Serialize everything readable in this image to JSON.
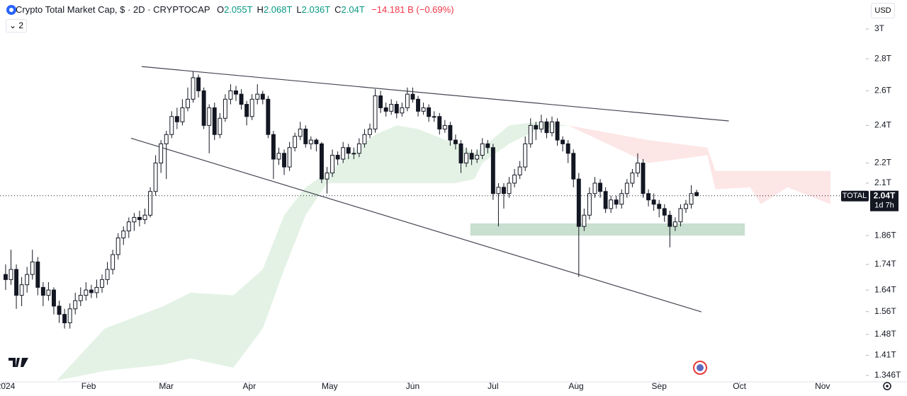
{
  "chart_data": {
    "type": "candlestick",
    "title": "Crypto Total Market Cap, $ · 2D · CRYPTOCAP",
    "ohlc_keys": [
      "O",
      "H",
      "L",
      "C"
    ],
    "ohlc_values": [
      "2.055T",
      "2.068T",
      "2.036T",
      "2.04T"
    ],
    "change": "−14.181 B (−0.69%)",
    "legend_toggle": "2",
    "currency": "USD",
    "log_scale": true,
    "xlim": [
      -2.1,
      321.2
    ],
    "ylim": [
      1.326,
      3.208
    ],
    "xticks": [
      {
        "value": 0,
        "label": "2024"
      },
      {
        "value": 31,
        "label": "Feb"
      },
      {
        "value": 60,
        "label": "Mar"
      },
      {
        "value": 91,
        "label": "Apr"
      },
      {
        "value": 121,
        "label": "May"
      },
      {
        "value": 152,
        "label": "Jun"
      },
      {
        "value": 182,
        "label": "Jul"
      },
      {
        "value": 213,
        "label": "Aug"
      },
      {
        "value": 244,
        "label": "Sep"
      },
      {
        "value": 274,
        "label": "Oct"
      },
      {
        "value": 305,
        "label": "Nov"
      }
    ],
    "yticks": [
      {
        "value": 3,
        "label": "3T"
      },
      {
        "value": 2.8,
        "label": "2.8T"
      },
      {
        "value": 2.6,
        "label": "2.6T"
      },
      {
        "value": 2.4,
        "label": "2.4T"
      },
      {
        "value": 2.2,
        "label": "2.2T"
      },
      {
        "value": 2.1,
        "label": "2.1T"
      },
      {
        "value": 1.86,
        "label": "1.86T"
      },
      {
        "value": 1.74,
        "label": "1.74T"
      },
      {
        "value": 1.64,
        "label": "1.64T"
      },
      {
        "value": 1.56,
        "label": "1.56T"
      },
      {
        "value": 1.48,
        "label": "1.48T"
      },
      {
        "value": 1.41,
        "label": "1.41T"
      },
      {
        "value": 1.346,
        "label": "1.346T"
      }
    ],
    "up_color": "#ffffff",
    "down_color": "#131722",
    "x": [
      0,
      2,
      4,
      6,
      8,
      10,
      12,
      14,
      16,
      18,
      20,
      22,
      24,
      26,
      28,
      30,
      32,
      34,
      36,
      38,
      40,
      42,
      44,
      46,
      48,
      50,
      52,
      54,
      56,
      58,
      60,
      62,
      64,
      66,
      68,
      70,
      72,
      74,
      76,
      78,
      80,
      82,
      84,
      86,
      88,
      90,
      92,
      94,
      96,
      98,
      100,
      102,
      104,
      106,
      108,
      110,
      112,
      114,
      116,
      118,
      120,
      122,
      124,
      126,
      128,
      130,
      132,
      134,
      136,
      138,
      140,
      142,
      144,
      146,
      148,
      150,
      152,
      154,
      156,
      158,
      160,
      162,
      164,
      166,
      168,
      170,
      172,
      174,
      176,
      178,
      180,
      182,
      184,
      186,
      188,
      190,
      192,
      194,
      196,
      198,
      200,
      202,
      204,
      206,
      208,
      210,
      212,
      214,
      216,
      218,
      220,
      222,
      224,
      226,
      228,
      230,
      232,
      234,
      236,
      238,
      240,
      242,
      244,
      246,
      248,
      250,
      252,
      254,
      256,
      258
    ],
    "candles": [
      [
        1.7,
        1.74,
        1.64,
        1.68
      ],
      [
        1.68,
        1.8,
        1.66,
        1.72
      ],
      [
        1.72,
        1.74,
        1.57,
        1.62
      ],
      [
        1.62,
        1.69,
        1.58,
        1.66
      ],
      [
        1.66,
        1.73,
        1.63,
        1.7
      ],
      [
        1.7,
        1.8,
        1.68,
        1.75
      ],
      [
        1.75,
        1.77,
        1.62,
        1.65
      ],
      [
        1.65,
        1.67,
        1.58,
        1.62
      ],
      [
        1.62,
        1.67,
        1.6,
        1.64
      ],
      [
        1.64,
        1.65,
        1.55,
        1.58
      ],
      [
        1.58,
        1.6,
        1.52,
        1.55
      ],
      [
        1.55,
        1.57,
        1.5,
        1.52
      ],
      [
        1.52,
        1.59,
        1.5,
        1.57
      ],
      [
        1.57,
        1.63,
        1.55,
        1.6
      ],
      [
        1.6,
        1.65,
        1.58,
        1.62
      ],
      [
        1.62,
        1.67,
        1.6,
        1.64
      ],
      [
        1.64,
        1.66,
        1.61,
        1.63
      ],
      [
        1.63,
        1.68,
        1.61,
        1.65
      ],
      [
        1.65,
        1.7,
        1.63,
        1.68
      ],
      [
        1.68,
        1.75,
        1.66,
        1.72
      ],
      [
        1.72,
        1.8,
        1.7,
        1.78
      ],
      [
        1.78,
        1.87,
        1.76,
        1.85
      ],
      [
        1.85,
        1.9,
        1.82,
        1.88
      ],
      [
        1.88,
        1.94,
        1.85,
        1.92
      ],
      [
        1.92,
        1.96,
        1.88,
        1.94
      ],
      [
        1.94,
        1.97,
        1.9,
        1.93
      ],
      [
        1.93,
        1.98,
        1.91,
        1.95
      ],
      [
        1.95,
        2.08,
        1.94,
        2.06
      ],
      [
        2.06,
        2.24,
        2.04,
        2.2
      ],
      [
        2.2,
        2.32,
        2.15,
        2.3
      ],
      [
        2.3,
        2.37,
        2.12,
        2.35
      ],
      [
        2.35,
        2.48,
        2.33,
        2.45
      ],
      [
        2.45,
        2.5,
        2.38,
        2.42
      ],
      [
        2.42,
        2.55,
        2.4,
        2.5
      ],
      [
        2.5,
        2.62,
        2.48,
        2.55
      ],
      [
        2.55,
        2.72,
        2.53,
        2.68
      ],
      [
        2.68,
        2.7,
        2.56,
        2.6
      ],
      [
        2.6,
        2.62,
        2.38,
        2.4
      ],
      [
        2.4,
        2.52,
        2.25,
        2.5
      ],
      [
        2.5,
        2.53,
        2.32,
        2.35
      ],
      [
        2.35,
        2.47,
        2.33,
        2.44
      ],
      [
        2.44,
        2.58,
        2.42,
        2.55
      ],
      [
        2.55,
        2.64,
        2.52,
        2.6
      ],
      [
        2.6,
        2.63,
        2.54,
        2.58
      ],
      [
        2.58,
        2.61,
        2.49,
        2.52
      ],
      [
        2.52,
        2.54,
        2.4,
        2.45
      ],
      [
        2.45,
        2.58,
        2.43,
        2.55
      ],
      [
        2.55,
        2.64,
        2.52,
        2.58
      ],
      [
        2.58,
        2.6,
        2.52,
        2.55
      ],
      [
        2.55,
        2.57,
        2.33,
        2.35
      ],
      [
        2.35,
        2.37,
        2.12,
        2.22
      ],
      [
        2.22,
        2.28,
        2.19,
        2.25
      ],
      [
        2.25,
        2.27,
        2.14,
        2.18
      ],
      [
        2.18,
        2.31,
        2.16,
        2.28
      ],
      [
        2.28,
        2.36,
        2.26,
        2.34
      ],
      [
        2.34,
        2.42,
        2.32,
        2.38
      ],
      [
        2.38,
        2.4,
        2.28,
        2.3
      ],
      [
        2.3,
        2.34,
        2.27,
        2.32
      ],
      [
        2.32,
        2.33,
        2.26,
        2.3
      ],
      [
        2.3,
        2.31,
        2.1,
        2.12
      ],
      [
        2.12,
        2.18,
        2.05,
        2.15
      ],
      [
        2.15,
        2.27,
        2.13,
        2.24
      ],
      [
        2.24,
        2.26,
        2.19,
        2.22
      ],
      [
        2.22,
        2.31,
        2.2,
        2.28
      ],
      [
        2.28,
        2.3,
        2.22,
        2.25
      ],
      [
        2.25,
        2.28,
        2.22,
        2.25
      ],
      [
        2.25,
        2.33,
        2.23,
        2.3
      ],
      [
        2.3,
        2.38,
        2.28,
        2.35
      ],
      [
        2.35,
        2.41,
        2.33,
        2.38
      ],
      [
        2.38,
        2.61,
        2.36,
        2.57
      ],
      [
        2.57,
        2.6,
        2.47,
        2.5
      ],
      [
        2.5,
        2.53,
        2.45,
        2.48
      ],
      [
        2.48,
        2.55,
        2.46,
        2.52
      ],
      [
        2.52,
        2.54,
        2.44,
        2.47
      ],
      [
        2.47,
        2.53,
        2.45,
        2.5
      ],
      [
        2.5,
        2.62,
        2.48,
        2.58
      ],
      [
        2.58,
        2.62,
        2.53,
        2.55
      ],
      [
        2.55,
        2.57,
        2.45,
        2.48
      ],
      [
        2.48,
        2.53,
        2.46,
        2.5
      ],
      [
        2.5,
        2.52,
        2.42,
        2.45
      ],
      [
        2.45,
        2.48,
        2.42,
        2.45
      ],
      [
        2.45,
        2.47,
        2.35,
        2.38
      ],
      [
        2.38,
        2.43,
        2.36,
        2.4
      ],
      [
        2.4,
        2.42,
        2.29,
        2.32
      ],
      [
        2.32,
        2.35,
        2.27,
        2.3
      ],
      [
        2.3,
        2.32,
        2.15,
        2.2
      ],
      [
        2.2,
        2.28,
        2.18,
        2.25
      ],
      [
        2.25,
        2.27,
        2.19,
        2.22
      ],
      [
        2.22,
        2.27,
        2.2,
        2.24
      ],
      [
        2.24,
        2.33,
        2.22,
        2.3
      ],
      [
        2.3,
        2.32,
        2.25,
        2.28
      ],
      [
        2.28,
        2.3,
        2.02,
        2.05
      ],
      [
        2.05,
        2.1,
        1.9,
        2.08
      ],
      [
        2.08,
        2.1,
        1.98,
        2.05
      ],
      [
        2.05,
        2.13,
        2.03,
        2.1
      ],
      [
        2.1,
        2.17,
        2.08,
        2.14
      ],
      [
        2.14,
        2.21,
        2.12,
        2.18
      ],
      [
        2.18,
        2.34,
        2.16,
        2.3
      ],
      [
        2.3,
        2.44,
        2.28,
        2.4
      ],
      [
        2.4,
        2.42,
        2.32,
        2.38
      ],
      [
        2.38,
        2.46,
        2.36,
        2.42
      ],
      [
        2.42,
        2.44,
        2.33,
        2.36
      ],
      [
        2.36,
        2.45,
        2.34,
        2.42
      ],
      [
        2.42,
        2.44,
        2.29,
        2.32
      ],
      [
        2.32,
        2.34,
        2.26,
        2.3
      ],
      [
        2.3,
        2.32,
        2.2,
        2.25
      ],
      [
        2.25,
        2.27,
        2.08,
        2.12
      ],
      [
        2.12,
        2.15,
        1.69,
        1.9
      ],
      [
        1.9,
        1.98,
        1.88,
        1.95
      ],
      [
        1.95,
        2.08,
        1.93,
        2.05
      ],
      [
        2.05,
        2.13,
        2.03,
        2.1
      ],
      [
        2.1,
        2.12,
        2.03,
        2.06
      ],
      [
        2.06,
        2.08,
        1.96,
        1.98
      ],
      [
        1.98,
        2.04,
        1.96,
        2.02
      ],
      [
        2.02,
        2.04,
        1.98,
        2.0
      ],
      [
        2.0,
        2.07,
        1.98,
        2.05
      ],
      [
        2.05,
        2.12,
        2.03,
        2.1
      ],
      [
        2.1,
        2.17,
        2.08,
        2.15
      ],
      [
        2.15,
        2.25,
        2.13,
        2.2
      ],
      [
        2.2,
        2.22,
        2.03,
        2.05
      ],
      [
        2.05,
        2.07,
        1.99,
        2.02
      ],
      [
        2.02,
        2.05,
        1.97,
        2.0
      ],
      [
        2.0,
        2.02,
        1.94,
        1.98
      ],
      [
        1.98,
        2.0,
        1.92,
        1.95
      ],
      [
        1.95,
        1.97,
        1.81,
        1.9
      ],
      [
        1.9,
        1.94,
        1.88,
        1.92
      ],
      [
        1.92,
        2.0,
        1.9,
        1.98
      ],
      [
        1.98,
        2.02,
        1.96,
        2.0
      ],
      [
        2.0,
        2.09,
        1.98,
        2.05
      ],
      [
        2.055,
        2.068,
        2.036,
        2.04
      ]
    ],
    "cloud_green": {
      "color": "#e3f2e5",
      "x": [
        19,
        37,
        59,
        69,
        85,
        96,
        104,
        112,
        120,
        138,
        146,
        154,
        168,
        175,
        178,
        188,
        199,
        210
      ],
      "upper": [
        1.33,
        1.5,
        1.58,
        1.63,
        1.62,
        1.72,
        1.95,
        2.08,
        2.15,
        2.35,
        2.4,
        2.38,
        2.3,
        2.25,
        2.28,
        2.4,
        2.42,
        2.4
      ],
      "lower": [
        1.33,
        1.36,
        1.38,
        1.4,
        1.37,
        1.5,
        1.72,
        1.95,
        2.1,
        2.1,
        2.1,
        2.1,
        2.1,
        2.12,
        2.2,
        2.3,
        2.38,
        2.4
      ]
    },
    "cloud_red": {
      "color": "#fde6e6",
      "x": [
        210,
        240,
        262,
        265,
        278,
        282,
        292,
        308
      ],
      "upper": [
        2.4,
        2.32,
        2.28,
        2.16,
        2.16,
        2.16,
        2.16,
        2.16
      ],
      "lower": [
        2.4,
        2.2,
        2.24,
        2.07,
        2.08,
        2.0,
        2.08,
        2.0
      ]
    },
    "trendlines": [
      {
        "x": [
          50.8,
          270
        ],
        "y": [
          2.75,
          2.425
        ]
      },
      {
        "x": [
          46.8,
          259.8
        ],
        "y": [
          2.33,
          1.559
        ]
      }
    ],
    "zone": {
      "color": "#c9dfcf",
      "x": [
        173.5,
        276
      ],
      "y": [
        1.86,
        1.913
      ]
    },
    "last_price": {
      "name": "TOTAL",
      "value": 2.04,
      "label": "2.04T",
      "countdown": "1d 7h"
    }
  }
}
